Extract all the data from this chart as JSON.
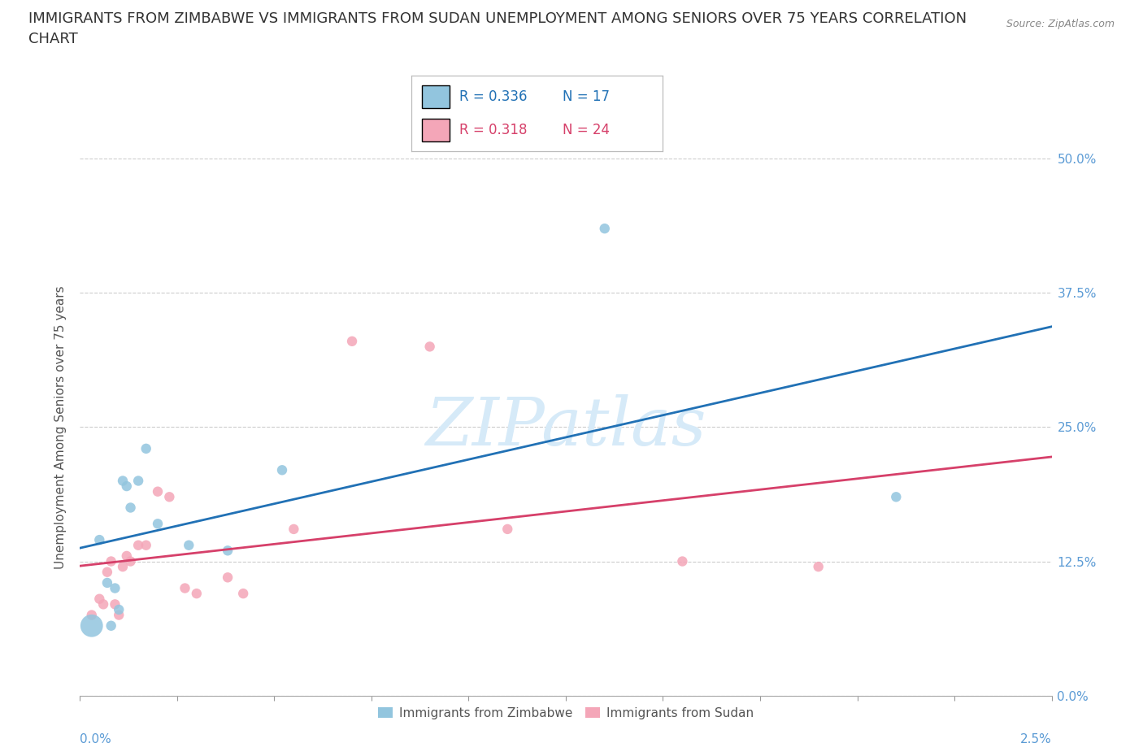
{
  "title_line1": "IMMIGRANTS FROM ZIMBABWE VS IMMIGRANTS FROM SUDAN UNEMPLOYMENT AMONG SENIORS OVER 75 YEARS CORRELATION",
  "title_line2": "CHART",
  "source": "Source: ZipAtlas.com",
  "ylabel": "Unemployment Among Seniors over 75 years",
  "xlim": [
    0.0,
    2.5
  ],
  "ylim": [
    0.0,
    50.0
  ],
  "yticks": [
    0.0,
    12.5,
    25.0,
    37.5,
    50.0
  ],
  "zimbabwe_color": "#92c5de",
  "sudan_color": "#f4a6b8",
  "zimbabwe_line_color": "#2171b5",
  "sudan_line_color": "#d6406a",
  "background_color": "#ffffff",
  "grid_color": "#cccccc",
  "watermark_color": "#d6eaf8",
  "zimbabwe_x": [
    0.03,
    0.05,
    0.07,
    0.08,
    0.09,
    0.1,
    0.11,
    0.12,
    0.13,
    0.15,
    0.17,
    0.2,
    0.28,
    0.38,
    0.52,
    1.35,
    2.1
  ],
  "zimbabwe_y": [
    6.5,
    14.5,
    10.5,
    6.5,
    10.0,
    8.0,
    20.0,
    19.5,
    17.5,
    20.0,
    23.0,
    16.0,
    14.0,
    13.5,
    21.0,
    43.5,
    18.5
  ],
  "zimbabwe_sizes": [
    400,
    80,
    80,
    80,
    80,
    80,
    80,
    80,
    80,
    80,
    80,
    80,
    80,
    80,
    80,
    80,
    80
  ],
  "sudan_x": [
    0.03,
    0.05,
    0.06,
    0.07,
    0.08,
    0.09,
    0.1,
    0.11,
    0.12,
    0.13,
    0.15,
    0.17,
    0.2,
    0.23,
    0.27,
    0.3,
    0.38,
    0.42,
    0.55,
    0.7,
    0.9,
    1.1,
    1.55,
    1.9
  ],
  "sudan_y": [
    7.5,
    9.0,
    8.5,
    11.5,
    12.5,
    8.5,
    7.5,
    12.0,
    13.0,
    12.5,
    14.0,
    14.0,
    19.0,
    18.5,
    10.0,
    9.5,
    11.0,
    9.5,
    15.5,
    33.0,
    32.5,
    15.5,
    12.5,
    12.0
  ],
  "sudan_sizes": [
    80,
    80,
    80,
    80,
    80,
    80,
    80,
    80,
    80,
    80,
    80,
    80,
    80,
    80,
    80,
    80,
    80,
    80,
    80,
    80,
    80,
    80,
    80,
    80
  ],
  "title_fontsize": 13,
  "axis_label_fontsize": 11,
  "tick_fontsize": 11,
  "legend_fontsize": 12
}
